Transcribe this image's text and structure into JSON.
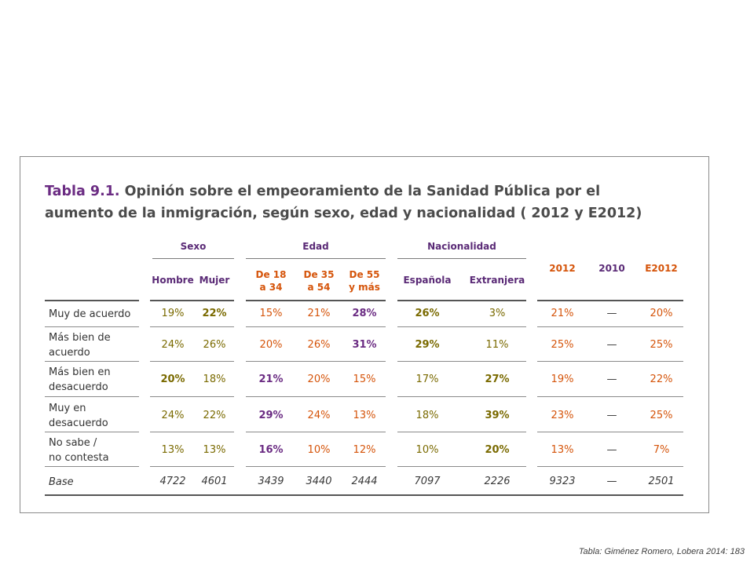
{
  "title": {
    "number": "Tabla 9.1.",
    "text": "Opinión sobre el empeoramiento de la Sanidad Pública por el aumento de la inmigración, según sexo, edad y nacionalidad ( 2012 y E2012)"
  },
  "groups": {
    "sexo": "Sexo",
    "edad": "Edad",
    "nacionalidad": "Nacionalidad"
  },
  "columns": {
    "hombre": "Hombre",
    "mujer": "Mujer",
    "de18": "De 18\na 34",
    "de35": "De 35\na 54",
    "de55": "De 55\ny más",
    "espanola": "Española",
    "extranjera": "Extranjera",
    "y2012": "2012",
    "y2010": "2010",
    "e2012": "E2012"
  },
  "rows": [
    {
      "label": "Muy de acuerdo",
      "values": [
        "19%",
        "22%",
        "15%",
        "21%",
        "28%",
        "26%",
        "3%",
        "21%",
        "—",
        "20%"
      ]
    },
    {
      "label": "Más bien de\nacuerdo",
      "values": [
        "24%",
        "26%",
        "20%",
        "26%",
        "31%",
        "29%",
        "11%",
        "25%",
        "—",
        "25%"
      ]
    },
    {
      "label": "Más bien en\ndesacuerdo",
      "values": [
        "20%",
        "18%",
        "21%",
        "20%",
        "15%",
        "17%",
        "27%",
        "19%",
        "—",
        "22%"
      ]
    },
    {
      "label": "Muy en\ndesacuerdo",
      "values": [
        "24%",
        "22%",
        "29%",
        "24%",
        "13%",
        "18%",
        "39%",
        "23%",
        "—",
        "25%"
      ]
    },
    {
      "label": "No sabe /\nno contesta",
      "values": [
        "13%",
        "13%",
        "16%",
        "10%",
        "12%",
        "10%",
        "20%",
        "13%",
        "—",
        "7%"
      ]
    },
    {
      "label": "Base",
      "values": [
        "4722",
        "4601",
        "3439",
        "3440",
        "2444",
        "7097",
        "2226",
        "9323",
        "—",
        "2501"
      ]
    }
  ],
  "source": "Tabla: Giménez Romero, Lobera 2014: 183",
  "colors": {
    "purple": "#6b2c83",
    "orange": "#d5540a",
    "olive": "#7a6a00"
  }
}
